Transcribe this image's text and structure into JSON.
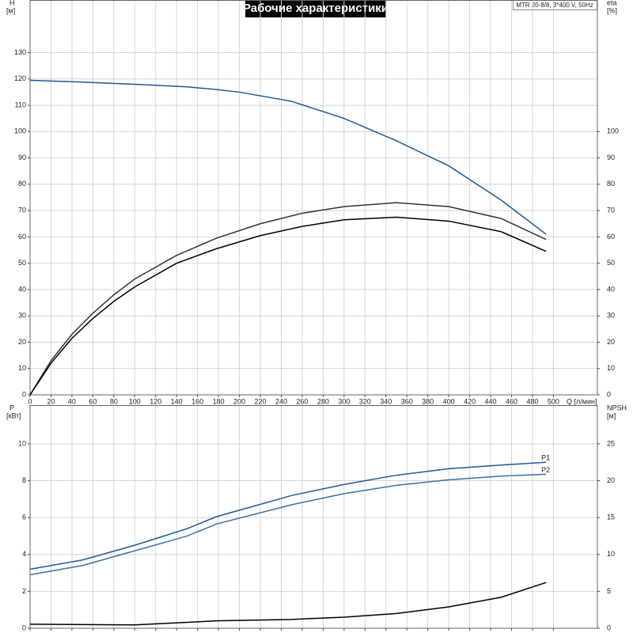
{
  "title": "Рабочие характеристики",
  "subtitle": "MTR 20-8/8, 3*400 V, 50Hz",
  "chart_data": [
    {
      "type": "line",
      "ylabel": "H",
      "ylabel_unit": "[м]",
      "y2label": "eta",
      "y2label_unit": "[%]",
      "xlabel": "Q [л/мин]",
      "xlim": [
        0,
        542
      ],
      "xticks": [
        0,
        20,
        40,
        60,
        80,
        100,
        120,
        140,
        160,
        180,
        200,
        220,
        240,
        260,
        280,
        300,
        320,
        340,
        360,
        380,
        400,
        420,
        440,
        460,
        480,
        500
      ],
      "show_xtick_labels": true,
      "ylim": [
        0,
        150
      ],
      "yticks": [
        0,
        10,
        20,
        30,
        40,
        50,
        60,
        70,
        80,
        90,
        100,
        110,
        120,
        130
      ],
      "y2lim": [
        0,
        150
      ],
      "y2ticks": [
        0,
        10,
        20,
        30,
        40,
        50,
        60,
        70,
        80,
        90,
        100
      ],
      "grid": true,
      "series": [
        {
          "color": "#1f5a96",
          "x": [
            0,
            50,
            100,
            150,
            178,
            200,
            250,
            300,
            350,
            400,
            450,
            493
          ],
          "values": [
            119.5,
            118.8,
            118,
            117,
            116,
            115,
            111.5,
            105,
            96.5,
            87,
            74,
            61
          ]
        },
        {
          "color": "#333333",
          "axis": "y2",
          "x": [
            0,
            20,
            40,
            60,
            80,
            100,
            140,
            178,
            220,
            260,
            300,
            350,
            400,
            450,
            493
          ],
          "values": [
            0,
            13,
            23,
            31,
            38,
            44,
            53,
            59.5,
            65,
            69,
            71.5,
            73,
            71.5,
            67,
            59
          ]
        },
        {
          "color": "#000000",
          "axis": "y2",
          "x": [
            0,
            20,
            40,
            60,
            80,
            100,
            140,
            178,
            220,
            260,
            300,
            350,
            400,
            450,
            493
          ],
          "values": [
            0,
            12,
            21.5,
            29,
            35.5,
            41,
            50,
            55.5,
            60.5,
            64,
            66.5,
            67.5,
            66,
            62,
            54.5
          ]
        }
      ]
    },
    {
      "type": "line",
      "ylabel": "P",
      "ylabel_unit": "[кВт]",
      "y2label": "NPSH",
      "y2label_unit": "[м]",
      "xlim": [
        0,
        542
      ],
      "xticks": [
        0,
        20,
        40,
        60,
        80,
        100,
        120,
        140,
        160,
        180,
        200,
        220,
        240,
        260,
        280,
        300,
        320,
        340,
        360,
        380,
        400,
        420,
        440,
        460,
        480,
        500
      ],
      "show_xtick_labels": false,
      "ylim": [
        0,
        12.1
      ],
      "yticks": [
        0,
        2,
        4,
        6,
        8,
        10
      ],
      "y2lim": [
        0,
        30.25
      ],
      "y2ticks": [
        0,
        5,
        10,
        15,
        20,
        25
      ],
      "grid": true,
      "series": [
        {
          "name": "P1",
          "color": "#1f5a96",
          "x": [
            0,
            50,
            100,
            150,
            178,
            250,
            300,
            350,
            400,
            450,
            493
          ],
          "values": [
            3.2,
            3.7,
            4.5,
            5.4,
            6.05,
            7.2,
            7.8,
            8.3,
            8.65,
            8.85,
            9.0
          ]
        },
        {
          "name": "P2",
          "color": "#3d6fa8",
          "x": [
            0,
            50,
            100,
            150,
            178,
            250,
            300,
            350,
            400,
            450,
            493
          ],
          "values": [
            2.9,
            3.4,
            4.2,
            5.0,
            5.65,
            6.7,
            7.3,
            7.75,
            8.05,
            8.25,
            8.35
          ]
        },
        {
          "color": "#000000",
          "axis": "y2",
          "x": [
            0,
            100,
            178,
            250,
            300,
            350,
            400,
            450,
            493
          ],
          "values": [
            0.55,
            0.45,
            1.0,
            1.2,
            1.5,
            2.0,
            2.9,
            4.2,
            6.2
          ]
        }
      ]
    }
  ]
}
